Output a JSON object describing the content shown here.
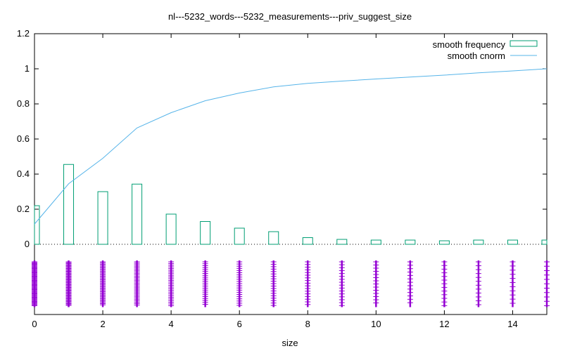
{
  "chart_data": {
    "type": "bar",
    "title": "nl---5232_words---5232_measurements---priv_suggest_size",
    "xlabel": "size",
    "ylabel": "",
    "xlim": [
      0,
      15
    ],
    "ylim": [
      -0.4,
      1.2
    ],
    "yticks": [
      0,
      0.2,
      0.4,
      0.6,
      0.8,
      1,
      1.2
    ],
    "ytick_labels": [
      "0",
      "0.2",
      "0.4",
      "0.6",
      "0.8",
      "1",
      "1.2"
    ],
    "xticks": [
      0,
      2,
      4,
      6,
      8,
      10,
      12,
      14
    ],
    "xtick_labels": [
      "0",
      "2",
      "4",
      "6",
      "8",
      "10",
      "12",
      "14"
    ],
    "series": [
      {
        "name": "smooth frequency",
        "kind": "bar",
        "color": "#009e73",
        "x": [
          0,
          1,
          2,
          3,
          4,
          5,
          6,
          7,
          8,
          9,
          10,
          11,
          12,
          13,
          14,
          15
        ],
        "values": [
          0.22,
          0.455,
          0.3,
          0.343,
          0.172,
          0.13,
          0.092,
          0.072,
          0.038,
          0.028,
          0.024,
          0.024,
          0.02,
          0.024,
          0.024,
          0.024
        ]
      },
      {
        "name": "smooth cnorm",
        "kind": "line",
        "color": "#56b4e9",
        "x": [
          0,
          1,
          2,
          3,
          4,
          5,
          6,
          7,
          8,
          9,
          10,
          11,
          12,
          13,
          14,
          15
        ],
        "values": [
          0.115,
          0.345,
          0.49,
          0.663,
          0.75,
          0.818,
          0.862,
          0.897,
          0.917,
          0.93,
          0.942,
          0.953,
          0.964,
          0.977,
          0.988,
          1.0
        ]
      },
      {
        "name": "measurements",
        "kind": "scatter",
        "color": "#9400d3",
        "x": [
          0,
          1,
          2,
          3,
          4,
          5,
          6,
          7,
          8,
          9,
          10,
          11,
          12,
          13,
          14,
          15
        ],
        "y_range": [
          -0.35,
          -0.1
        ]
      }
    ],
    "legend": {
      "position": "top-right",
      "entries": [
        "smooth frequency",
        "smooth cnorm"
      ]
    },
    "zero_line": {
      "style": "dotted"
    }
  }
}
